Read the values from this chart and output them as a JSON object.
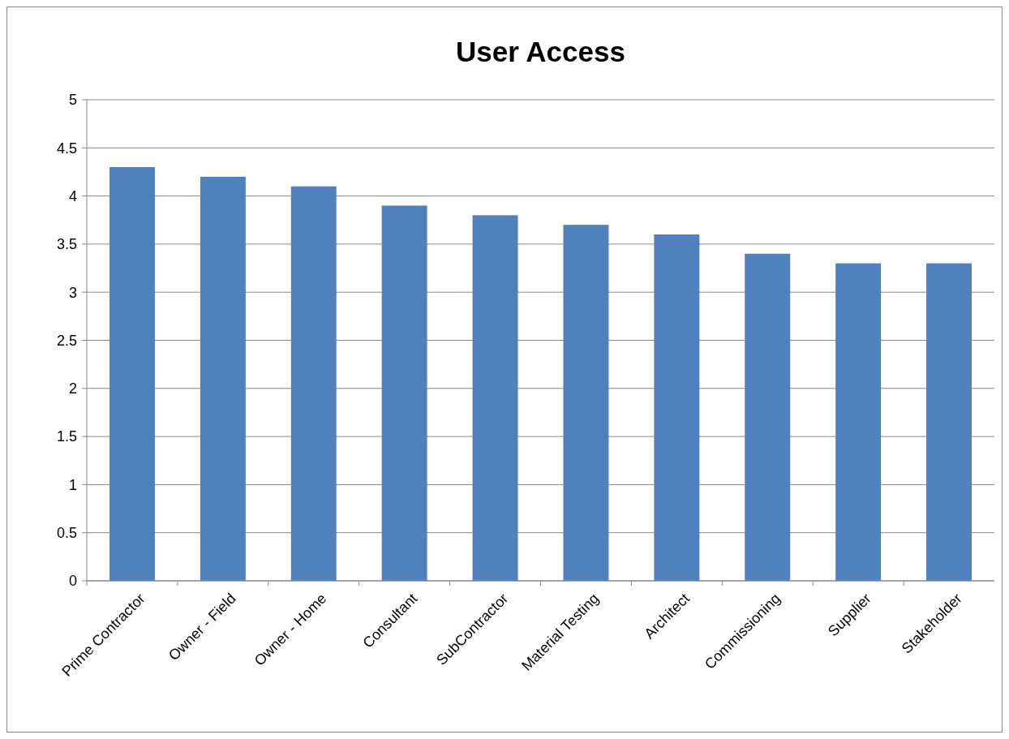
{
  "chart_data": {
    "type": "bar",
    "title": "User Access",
    "categories": [
      "Prime Contractor",
      "Owner - Field",
      "Owner - Home",
      "Consultant",
      "SubContractor",
      "Material Testing",
      "Architect",
      "Commissioning",
      "Supplier",
      "Stakeholder"
    ],
    "values": [
      4.3,
      4.2,
      4.1,
      3.9,
      3.8,
      3.7,
      3.6,
      3.4,
      3.3,
      3.3
    ],
    "color": "#4f81bd",
    "ylim": [
      0,
      5
    ],
    "yticks": [
      0,
      0.5,
      1,
      1.5,
      2,
      2.5,
      3,
      3.5,
      4,
      4.5,
      5
    ],
    "grid": "y"
  }
}
